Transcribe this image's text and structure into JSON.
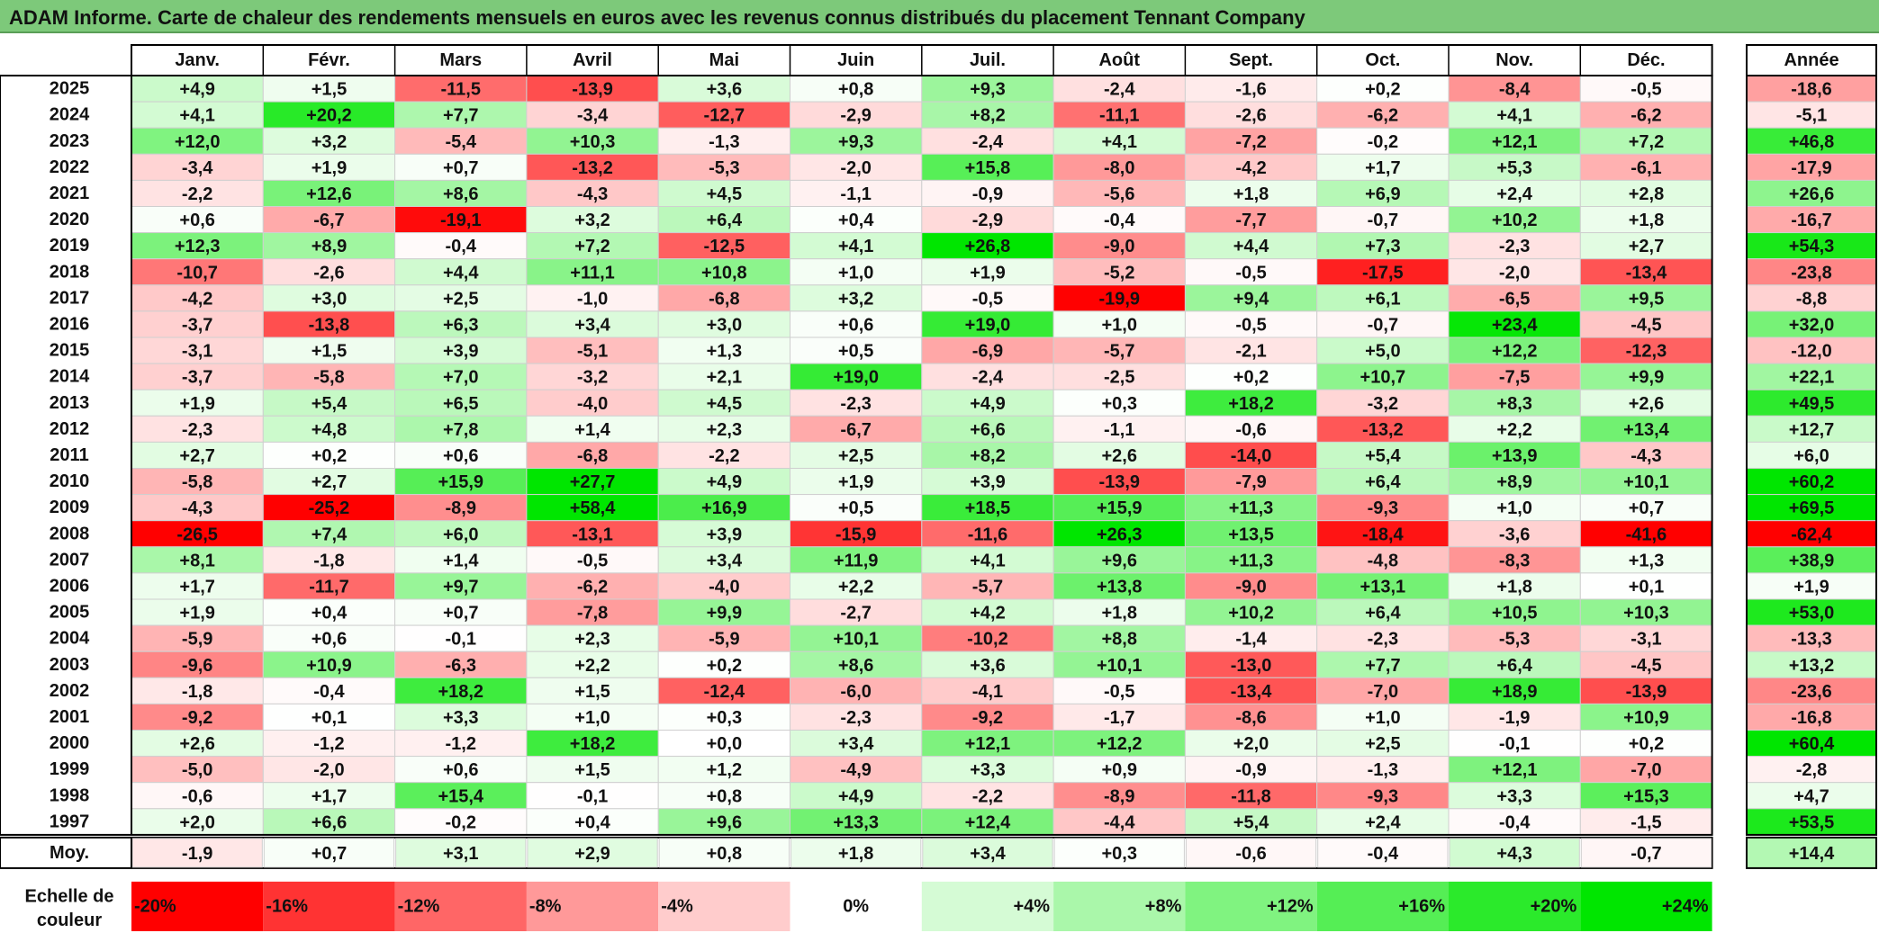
{
  "title": "ADAM Informe. Carte de chaleur des rendements mensuels en euros avec les revenus connus distribués du placement Tennant Company",
  "chart_data": {
    "type": "heatmap",
    "columns": [
      "Janv.",
      "Févr.",
      "Mars",
      "Avril",
      "Mai",
      "Juin",
      "Juil.",
      "Août",
      "Sept.",
      "Oct.",
      "Nov.",
      "Déc."
    ],
    "year_header": "Année",
    "rows": [
      {
        "label": "2025",
        "values": [
          "+4,9",
          "+1,5",
          "-11,5",
          "-13,9",
          "+3,6",
          "+0,8",
          "+9,3",
          "-2,4",
          "-1,6",
          "+0,2",
          "-8,4",
          "-0,5"
        ],
        "annual": "-18,6"
      },
      {
        "label": "2024",
        "values": [
          "+4,1",
          "+20,2",
          "+7,7",
          "-3,4",
          "-12,7",
          "-2,9",
          "+8,2",
          "-11,1",
          "-2,6",
          "-6,2",
          "+4,1",
          "-6,2"
        ],
        "annual": "-5,1"
      },
      {
        "label": "2023",
        "values": [
          "+12,0",
          "+3,2",
          "-5,4",
          "+10,3",
          "-1,3",
          "+9,3",
          "-2,4",
          "+4,1",
          "-7,2",
          "-0,2",
          "+12,1",
          "+7,2"
        ],
        "annual": "+46,8"
      },
      {
        "label": "2022",
        "values": [
          "-3,4",
          "+1,9",
          "+0,7",
          "-13,2",
          "-5,3",
          "-2,0",
          "+15,8",
          "-8,0",
          "-4,2",
          "+1,7",
          "+5,3",
          "-6,1"
        ],
        "annual": "-17,9"
      },
      {
        "label": "2021",
        "values": [
          "-2,2",
          "+12,6",
          "+8,6",
          "-4,3",
          "+4,5",
          "-1,1",
          "-0,9",
          "-5,6",
          "+1,8",
          "+6,9",
          "+2,4",
          "+2,8"
        ],
        "annual": "+26,6"
      },
      {
        "label": "2020",
        "values": [
          "+0,6",
          "-6,7",
          "-19,1",
          "+3,2",
          "+6,4",
          "+0,4",
          "-2,9",
          "-0,4",
          "-7,7",
          "-0,7",
          "+10,2",
          "+1,8"
        ],
        "annual": "-16,7"
      },
      {
        "label": "2019",
        "values": [
          "+12,3",
          "+8,9",
          "-0,4",
          "+7,2",
          "-12,5",
          "+4,1",
          "+26,8",
          "-9,0",
          "+4,4",
          "+7,3",
          "-2,3",
          "+2,7"
        ],
        "annual": "+54,3"
      },
      {
        "label": "2018",
        "values": [
          "-10,7",
          "-2,6",
          "+4,4",
          "+11,1",
          "+10,8",
          "+1,0",
          "+1,9",
          "-5,2",
          "-0,5",
          "-17,5",
          "-2,0",
          "-13,4"
        ],
        "annual": "-23,8"
      },
      {
        "label": "2017",
        "values": [
          "-4,2",
          "+3,0",
          "+2,5",
          "-1,0",
          "-6,8",
          "+3,2",
          "-0,5",
          "-19,9",
          "+9,4",
          "+6,1",
          "-6,5",
          "+9,5"
        ],
        "annual": "-8,8"
      },
      {
        "label": "2016",
        "values": [
          "-3,7",
          "-13,8",
          "+6,3",
          "+3,4",
          "+3,0",
          "+0,6",
          "+19,0",
          "+1,0",
          "-0,5",
          "-0,7",
          "+23,4",
          "-4,5"
        ],
        "annual": "+32,0"
      },
      {
        "label": "2015",
        "values": [
          "-3,1",
          "+1,5",
          "+3,9",
          "-5,1",
          "+1,3",
          "+0,5",
          "-6,9",
          "-5,7",
          "-2,1",
          "+5,0",
          "+12,2",
          "-12,3"
        ],
        "annual": "-12,0"
      },
      {
        "label": "2014",
        "values": [
          "-3,7",
          "-5,8",
          "+7,0",
          "-3,2",
          "+2,1",
          "+19,0",
          "-2,4",
          "-2,5",
          "+0,2",
          "+10,7",
          "-7,5",
          "+9,9"
        ],
        "annual": "+22,1"
      },
      {
        "label": "2013",
        "values": [
          "+1,9",
          "+5,4",
          "+6,5",
          "-4,0",
          "+4,5",
          "-2,3",
          "+4,9",
          "+0,3",
          "+18,2",
          "-3,2",
          "+8,3",
          "+2,6"
        ],
        "annual": "+49,5"
      },
      {
        "label": "2012",
        "values": [
          "-2,3",
          "+4,8",
          "+7,8",
          "+1,4",
          "+2,3",
          "-6,7",
          "+6,6",
          "-1,1",
          "-0,6",
          "-13,2",
          "+2,2",
          "+13,4"
        ],
        "annual": "+12,7"
      },
      {
        "label": "2011",
        "values": [
          "+2,7",
          "+0,2",
          "+0,6",
          "-6,8",
          "-2,2",
          "+2,5",
          "+8,2",
          "+2,6",
          "-14,0",
          "+5,4",
          "+13,9",
          "-4,3"
        ],
        "annual": "+6,0"
      },
      {
        "label": "2010",
        "values": [
          "-5,8",
          "+2,7",
          "+15,9",
          "+27,7",
          "+4,9",
          "+1,9",
          "+3,9",
          "-13,9",
          "-7,9",
          "+6,4",
          "+8,9",
          "+10,1"
        ],
        "annual": "+60,2"
      },
      {
        "label": "2009",
        "values": [
          "-4,3",
          "-25,2",
          "-8,9",
          "+58,4",
          "+16,9",
          "+0,5",
          "+18,5",
          "+15,9",
          "+11,3",
          "-9,3",
          "+1,0",
          "+0,7"
        ],
        "annual": "+69,5"
      },
      {
        "label": "2008",
        "values": [
          "-26,5",
          "+7,4",
          "+6,0",
          "-13,1",
          "+3,9",
          "-15,9",
          "-11,6",
          "+26,3",
          "+13,5",
          "-18,4",
          "-3,6",
          "-41,6"
        ],
        "annual": "-62,4"
      },
      {
        "label": "2007",
        "values": [
          "+8,1",
          "-1,8",
          "+1,4",
          "-0,5",
          "+3,4",
          "+11,9",
          "+4,1",
          "+9,6",
          "+11,3",
          "-4,8",
          "-8,3",
          "+1,3"
        ],
        "annual": "+38,9"
      },
      {
        "label": "2006",
        "values": [
          "+1,7",
          "-11,7",
          "+9,7",
          "-6,2",
          "-4,0",
          "+2,2",
          "-5,7",
          "+13,8",
          "-9,0",
          "+13,1",
          "+1,8",
          "+0,1"
        ],
        "annual": "+1,9"
      },
      {
        "label": "2005",
        "values": [
          "+1,9",
          "+0,4",
          "+0,7",
          "-7,8",
          "+9,9",
          "-2,7",
          "+4,2",
          "+1,8",
          "+10,2",
          "+6,4",
          "+10,5",
          "+10,3"
        ],
        "annual": "+53,0"
      },
      {
        "label": "2004",
        "values": [
          "-5,9",
          "+0,6",
          "-0,1",
          "+2,3",
          "-5,9",
          "+10,1",
          "-10,2",
          "+8,8",
          "-1,4",
          "-2,3",
          "-5,3",
          "-3,1"
        ],
        "annual": "-13,3"
      },
      {
        "label": "2003",
        "values": [
          "-9,6",
          "+10,9",
          "-6,3",
          "+2,2",
          "+0,2",
          "+8,6",
          "+3,6",
          "+10,1",
          "-13,0",
          "+7,7",
          "+6,4",
          "-4,5"
        ],
        "annual": "+13,2"
      },
      {
        "label": "2002",
        "values": [
          "-1,8",
          "-0,4",
          "+18,2",
          "+1,5",
          "-12,4",
          "-6,0",
          "-4,1",
          "-0,5",
          "-13,4",
          "-7,0",
          "+18,9",
          "-13,9"
        ],
        "annual": "-23,6"
      },
      {
        "label": "2001",
        "values": [
          "-9,2",
          "+0,1",
          "+3,3",
          "+1,0",
          "+0,3",
          "-2,3",
          "-9,2",
          "-1,7",
          "-8,6",
          "+1,0",
          "-1,9",
          "+10,9"
        ],
        "annual": "-16,8"
      },
      {
        "label": "2000",
        "values": [
          "+2,6",
          "-1,2",
          "-1,2",
          "+18,2",
          "+0,0",
          "+3,4",
          "+12,1",
          "+12,2",
          "+2,0",
          "+2,5",
          "-0,1",
          "+0,2"
        ],
        "annual": "+60,4"
      },
      {
        "label": "1999",
        "values": [
          "-5,0",
          "-2,0",
          "+0,6",
          "+1,5",
          "+1,2",
          "-4,9",
          "+3,3",
          "+0,9",
          "-0,9",
          "-1,3",
          "+12,1",
          "-7,0"
        ],
        "annual": "-2,8"
      },
      {
        "label": "1998",
        "values": [
          "-0,6",
          "+1,7",
          "+15,4",
          "-0,1",
          "+0,8",
          "+4,9",
          "-2,2",
          "-8,9",
          "-11,8",
          "-9,3",
          "+3,3",
          "+15,3"
        ],
        "annual": "+4,7"
      },
      {
        "label": "1997",
        "values": [
          "+2,0",
          "+6,6",
          "-0,2",
          "+0,4",
          "+9,6",
          "+13,3",
          "+12,4",
          "-4,4",
          "+5,4",
          "+2,4",
          "-0,4",
          "-1,5"
        ],
        "annual": "+53,5"
      }
    ],
    "average": {
      "label": "Moy.",
      "values": [
        "-1,9",
        "+0,7",
        "+3,1",
        "+2,9",
        "+0,8",
        "+1,8",
        "+3,4",
        "+0,3",
        "-0,6",
        "-0,4",
        "+4,3",
        "-0,7"
      ],
      "annual": "+14,4"
    },
    "legend": {
      "label_line1": "Echelle de",
      "label_line2": "couleur",
      "stops": [
        "-20%",
        "-16%",
        "-12%",
        "-8%",
        "-4%",
        "0%",
        "+4%",
        "+8%",
        "+12%",
        "+16%",
        "+20%",
        "+24%"
      ]
    },
    "colors": {
      "negative": "#ff0000",
      "neutral": "#ffffff",
      "positive": "#00e600"
    }
  }
}
